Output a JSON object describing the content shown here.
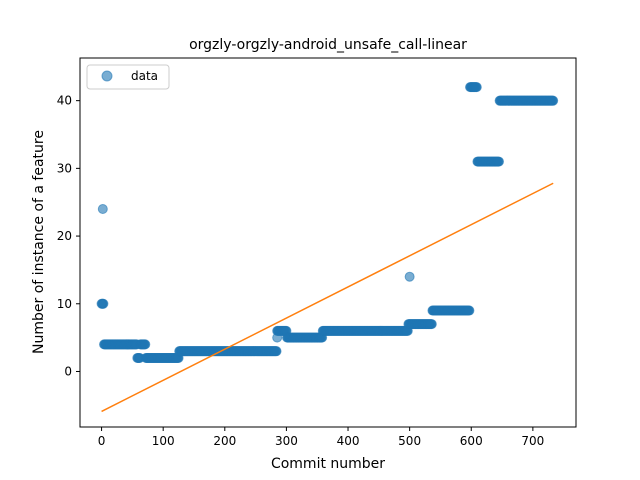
{
  "chart_data": {
    "type": "scatter",
    "title": "orgzly-orgzly-android_unsafe_call-linear",
    "xlabel": "Commit number",
    "ylabel": "Number of instance of a feature",
    "xlim": [
      -35,
      770
    ],
    "ylim": [
      -8.2,
      46.3
    ],
    "xticks": [
      0,
      100,
      200,
      300,
      400,
      500,
      600,
      700
    ],
    "yticks": [
      0,
      10,
      20,
      30,
      40
    ],
    "grid": false,
    "legend": {
      "position": "top-left",
      "entries": [
        "data"
      ]
    },
    "colors": {
      "points": "#1f77b4",
      "fit": "#ff7f0e"
    },
    "series": [
      {
        "name": "data",
        "kind": "scatter",
        "segments": [
          {
            "x_start": 0,
            "x_end": 3,
            "y": 10
          },
          {
            "x_start": 4,
            "x_end": 57,
            "y": 4
          },
          {
            "x_start": 58,
            "x_end": 62,
            "y": 2
          },
          {
            "x_start": 63,
            "x_end": 71,
            "y": 4
          },
          {
            "x_start": 72,
            "x_end": 125,
            "y": 2
          },
          {
            "x_start": 126,
            "x_end": 284,
            "y": 3
          },
          {
            "x_start": 285,
            "x_end": 300,
            "y": 6
          },
          {
            "x_start": 301,
            "x_end": 358,
            "y": 5
          },
          {
            "x_start": 359,
            "x_end": 497,
            "y": 6
          },
          {
            "x_start": 498,
            "x_end": 536,
            "y": 7
          },
          {
            "x_start": 537,
            "x_end": 597,
            "y": 9
          },
          {
            "x_start": 598,
            "x_end": 609,
            "y": 42
          },
          {
            "x_start": 610,
            "x_end": 645,
            "y": 31
          },
          {
            "x_start": 646,
            "x_end": 733,
            "y": 40
          }
        ],
        "points": [
          {
            "x": 2,
            "y": 24
          },
          {
            "x": 285,
            "y": 5
          },
          {
            "x": 500,
            "y": 14
          }
        ]
      },
      {
        "name": "",
        "kind": "line",
        "x": [
          0,
          733
        ],
        "y": [
          -5.9,
          27.8
        ]
      }
    ]
  }
}
